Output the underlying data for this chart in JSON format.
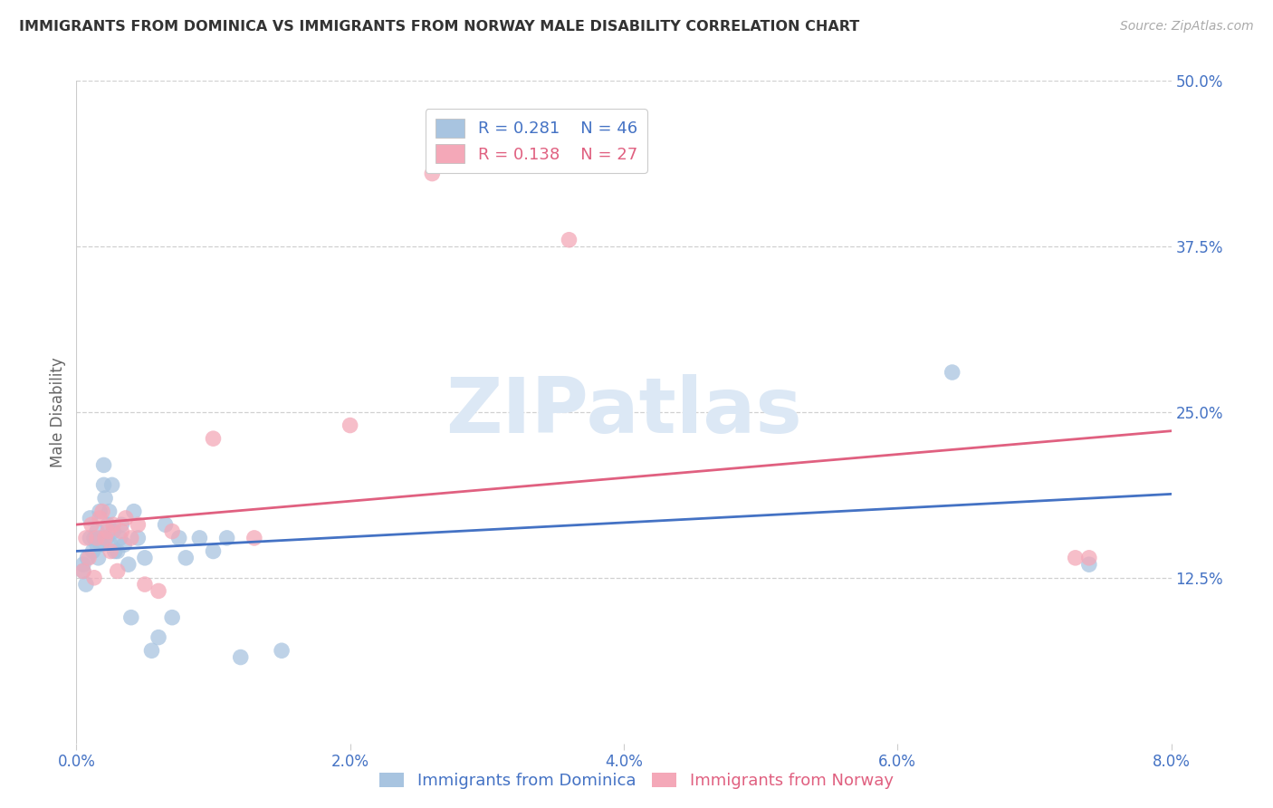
{
  "title": "IMMIGRANTS FROM DOMINICA VS IMMIGRANTS FROM NORWAY MALE DISABILITY CORRELATION CHART",
  "source": "Source: ZipAtlas.com",
  "xlim": [
    0.0,
    0.08
  ],
  "ylim": [
    0.0,
    0.5
  ],
  "ylabel": "Male Disability",
  "legend1_r": "0.281",
  "legend1_n": "46",
  "legend2_r": "0.138",
  "legend2_n": "27",
  "color_dominica": "#a8c4e0",
  "color_norway": "#f4a8b8",
  "color_line_dominica": "#4472c4",
  "color_line_norway": "#e06080",
  "color_tick": "#4472c4",
  "color_title": "#333333",
  "color_source": "#aaaaaa",
  "watermark_color": "#dce8f5",
  "watermark_text": "ZIPatlas",
  "dominica_x": [
    0.0005,
    0.0005,
    0.0007,
    0.0008,
    0.001,
    0.001,
    0.0012,
    0.0013,
    0.0015,
    0.0015,
    0.0016,
    0.0017,
    0.0018,
    0.0018,
    0.002,
    0.002,
    0.0021,
    0.0022,
    0.0023,
    0.0024,
    0.0025,
    0.0026,
    0.0027,
    0.0028,
    0.003,
    0.0032,
    0.0033,
    0.0035,
    0.0038,
    0.004,
    0.0042,
    0.0045,
    0.005,
    0.0055,
    0.006,
    0.0065,
    0.007,
    0.0075,
    0.008,
    0.009,
    0.01,
    0.011,
    0.012,
    0.015,
    0.064,
    0.074
  ],
  "dominica_y": [
    0.135,
    0.13,
    0.12,
    0.14,
    0.155,
    0.17,
    0.145,
    0.155,
    0.15,
    0.16,
    0.14,
    0.175,
    0.15,
    0.155,
    0.195,
    0.21,
    0.185,
    0.155,
    0.165,
    0.175,
    0.15,
    0.195,
    0.16,
    0.145,
    0.145,
    0.155,
    0.165,
    0.15,
    0.135,
    0.095,
    0.175,
    0.155,
    0.14,
    0.07,
    0.08,
    0.165,
    0.095,
    0.155,
    0.14,
    0.155,
    0.145,
    0.155,
    0.065,
    0.07,
    0.28,
    0.135
  ],
  "norway_x": [
    0.0005,
    0.0007,
    0.0009,
    0.0011,
    0.0013,
    0.0015,
    0.0017,
    0.0019,
    0.0021,
    0.0023,
    0.0025,
    0.0027,
    0.003,
    0.0033,
    0.0036,
    0.004,
    0.0045,
    0.005,
    0.006,
    0.007,
    0.01,
    0.013,
    0.02,
    0.026,
    0.036,
    0.073,
    0.074
  ],
  "norway_y": [
    0.13,
    0.155,
    0.14,
    0.165,
    0.125,
    0.155,
    0.17,
    0.175,
    0.155,
    0.16,
    0.145,
    0.165,
    0.13,
    0.16,
    0.17,
    0.155,
    0.165,
    0.12,
    0.115,
    0.16,
    0.23,
    0.155,
    0.24,
    0.43,
    0.38,
    0.14,
    0.14
  ]
}
